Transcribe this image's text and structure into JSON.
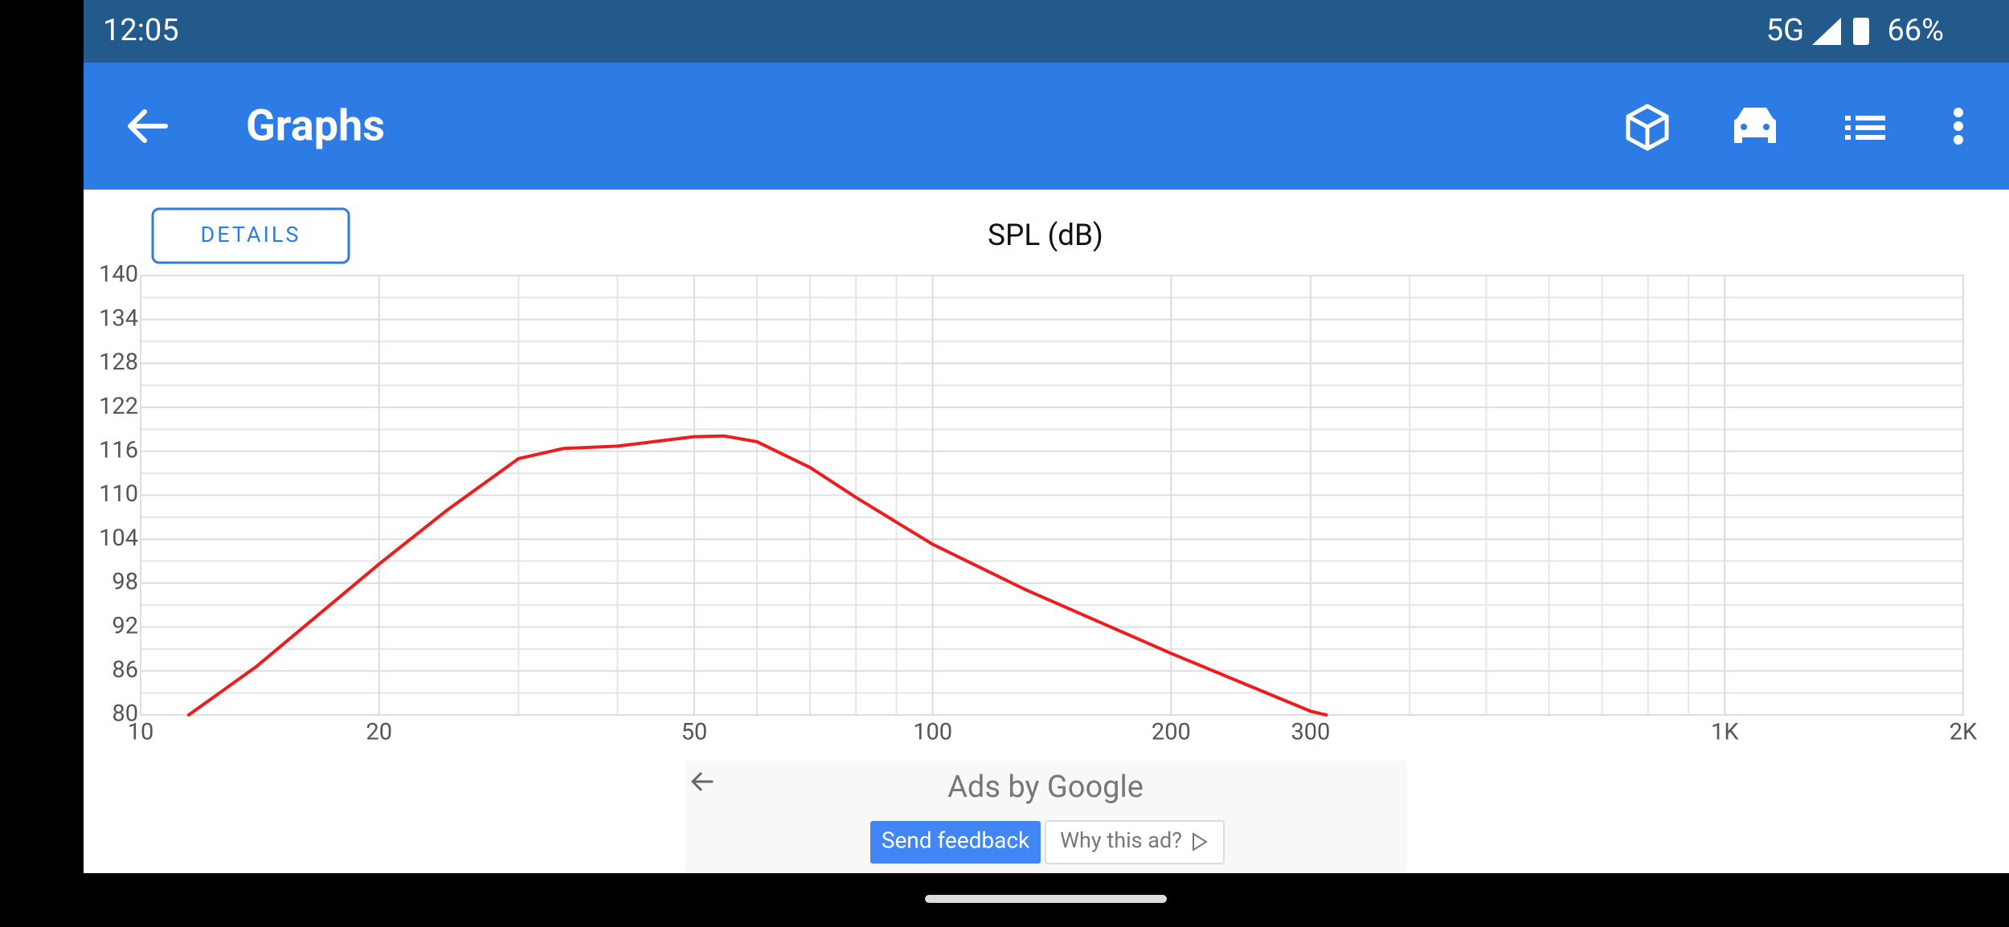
{
  "status_bar": {
    "time": "12:05",
    "network": "5G",
    "battery": "66%"
  },
  "app_bar": {
    "title": "Graphs"
  },
  "details_button": "DETAILS",
  "chart_data": {
    "type": "line",
    "title": "SPL (dB)",
    "x": [
      11.5,
      14,
      20,
      24.4,
      30,
      34.2,
      40,
      50,
      54.5,
      60,
      70,
      80,
      100,
      131,
      200,
      300,
      314
    ],
    "values": [
      80,
      86.6,
      100.6,
      108,
      115,
      116.4,
      116.7,
      118,
      118.1,
      117.3,
      113.8,
      109.7,
      103.3,
      97.1,
      88.4,
      80.5,
      80
    ],
    "color": "#ee1c1c",
    "xscale": "log",
    "xlim": [
      10,
      2000
    ],
    "xticks": [
      10,
      20,
      50,
      100,
      200,
      300,
      {
        "value": 1000,
        "label": "1K"
      },
      {
        "value": 2000,
        "label": "2K"
      }
    ],
    "ylim": [
      80,
      140
    ],
    "yticks": [
      80,
      86,
      92,
      98,
      104,
      110,
      116,
      122,
      128,
      134,
      140
    ],
    "grid": true
  },
  "ad": {
    "label": "Ads by Google",
    "feedback_button": "Send feedback",
    "why_button": "Why this ad?"
  }
}
